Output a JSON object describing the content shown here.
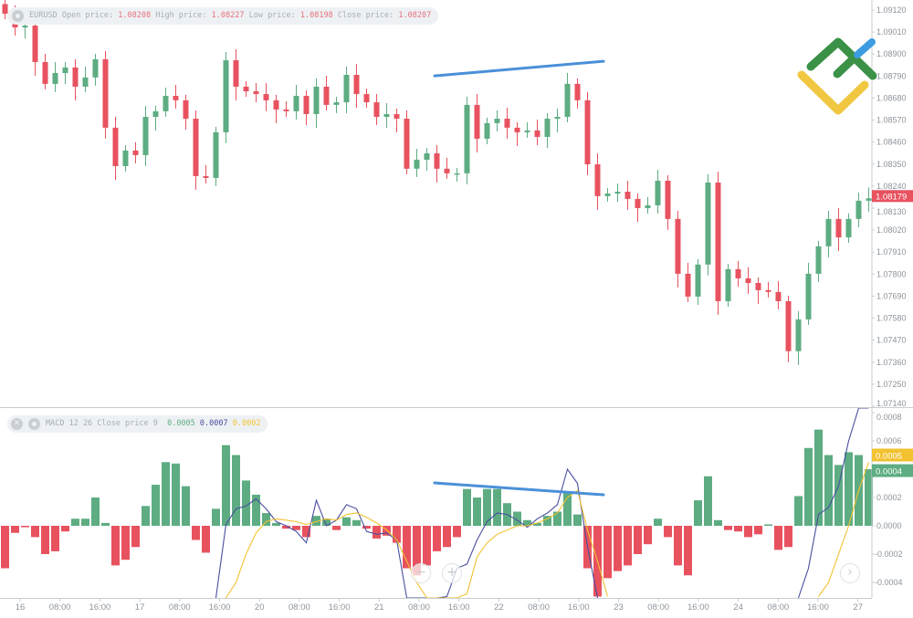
{
  "header": {
    "symbol": "EURUSD",
    "open_label": "Open price:",
    "open": "1.08208",
    "high_label": "High price:",
    "high": "1.08227",
    "low_label": "Low price:",
    "low": "1.08198",
    "close_label": "Close price:",
    "close": "1.08207",
    "icon": "gear-icon"
  },
  "macd_header": {
    "label": "MACD 12 26 Close price 9",
    "hist": "0.0005",
    "macd": "0.0007",
    "signal": "0.0002",
    "icons": [
      "close-icon",
      "gear-icon"
    ]
  },
  "colors": {
    "up": "#5dac82",
    "down": "#e8525f",
    "macd": "#4a4f9e",
    "signal": "#f2c230",
    "trendline": "#4a90d9",
    "axis": "#c8cdd2"
  },
  "chart_data": [
    {
      "type": "candlestick",
      "symbol": "EURUSD",
      "ylim": [
        1.0714,
        1.0912
      ],
      "y_ticks": [
        "1.09120",
        "1.09010",
        "1.08900",
        "1.08790",
        "1.08680",
        "1.08570",
        "1.08460",
        "1.08350",
        "1.08240",
        "1.08130",
        "1.08020",
        "1.07910",
        "1.07800",
        "1.07690",
        "1.07580",
        "1.07470",
        "1.07360",
        "1.07250",
        "1.07140"
      ],
      "current_price": "1.08179",
      "first_open": 1.0915,
      "close": [
        1.09102,
        1.09033,
        1.09042,
        1.0886,
        1.08751,
        1.08805,
        1.08833,
        1.08737,
        1.08783,
        1.08874,
        1.08532,
        1.0834,
        1.08418,
        1.08395,
        1.08586,
        1.08614,
        1.08691,
        1.08669,
        1.08577,
        1.0829,
        1.08281,
        1.08509,
        1.08869,
        1.08737,
        1.08714,
        1.087,
        1.08669,
        1.08623,
        1.08614,
        1.08691,
        1.086,
        1.08737,
        1.08646,
        1.08659,
        1.08796,
        1.087,
        1.08659,
        1.08586,
        1.086,
        1.08577,
        1.08327,
        1.08372,
        1.08404,
        1.08327,
        1.08304,
        1.08304,
        1.08646,
        1.08477,
        1.08555,
        1.08577,
        1.08532,
        1.08509,
        1.08518,
        1.08486,
        1.08577,
        1.08586,
        1.08751,
        1.08669,
        1.08349,
        1.0819,
        1.08203,
        1.08212,
        1.08176,
        1.0813,
        1.08144,
        1.08267,
        1.08076,
        1.07802,
        1.07688,
        1.07848,
        1.08258,
        1.07665,
        1.07825,
        1.07779,
        1.07756,
        1.0772,
        1.07711,
        1.07665,
        1.07415,
        1.07574,
        1.07802,
        1.07939,
        1.08076,
        1.07984,
        1.08076,
        1.08167,
        1.08179
      ],
      "trendline": [
        1.08791,
        1.08864
      ]
    },
    {
      "type": "macd",
      "ylim": [
        -0.00045,
        0.0008
      ],
      "y_ticks": [
        "0.0008",
        "0.0006",
        "0.0002",
        "0.0000",
        "-0.0002",
        "-0.0004"
      ],
      "badges": {
        "signal": "0.0005",
        "histogram": "0.0004"
      },
      "histogram": [
        -0.0003,
        -5e-05,
        -1e-05,
        -8e-05,
        -0.0002,
        -0.00018,
        -4e-05,
        5e-05,
        5e-05,
        0.0002,
        2e-05,
        -0.00028,
        -0.00024,
        -0.00015,
        0.00014,
        0.00029,
        0.00045,
        0.00044,
        0.00028,
        -0.0001,
        -0.00019,
        0.00012,
        0.00057,
        0.0005,
        0.00032,
        0.00022,
        9e-05,
        2e-05,
        -2e-05,
        -3e-05,
        -8e-05,
        7e-05,
        5e-05,
        -3e-05,
        6e-05,
        4e-05,
        -2e-05,
        -9e-05,
        -7e-05,
        -0.00012,
        -0.0003,
        -0.00035,
        -0.00028,
        -0.00018,
        -0.00015,
        -8e-05,
        0.00026,
        0.0002,
        0.00026,
        0.00026,
        0.00016,
        0.0001,
        4e-05,
        2e-05,
        7e-05,
        0.0001,
        0.00023,
        8e-05,
        -0.0003,
        -0.0005,
        -0.00037,
        -0.00032,
        -0.00028,
        -0.0002,
        -0.00013,
        5e-05,
        -8e-05,
        -0.00028,
        -0.00035,
        0.00018,
        0.00035,
        4e-05,
        -3e-05,
        -4e-05,
        -8e-05,
        -6e-05,
        1e-05,
        -0.00017,
        -0.00015,
        0.00021,
        0.00055,
        0.00068,
        0.0005,
        0.00043,
        0.00052,
        0.0005,
        0.0004
      ],
      "macd": [
        null,
        null,
        null,
        null,
        null,
        null,
        null,
        null,
        null,
        null,
        null,
        null,
        null,
        null,
        null,
        null,
        null,
        null,
        null,
        null,
        null,
        -0.0008,
        1e-05,
        0.00012,
        0.00014,
        0.00019,
        0.00012,
        3e-05,
        0,
        -4e-05,
        -0.00012,
        0.00018,
        0,
        4e-05,
        0.00015,
        0.00012,
        -4e-05,
        -6e-05,
        -5e-05,
        -0.0001,
        -0.0006,
        -0.0009,
        -0.001,
        -0.001,
        -0.0005,
        -0.0003,
        -0.00027,
        -0.0001,
        3e-05,
        9e-05,
        8e-05,
        4e-05,
        -1e-05,
        5e-05,
        9e-05,
        0.00015,
        0.0004,
        0.0003,
        -0.00015,
        -0.0008,
        null,
        null,
        null,
        null,
        null,
        null,
        null,
        null,
        null,
        null,
        null,
        null,
        null,
        null,
        null,
        null,
        null,
        null,
        null,
        -0.0009,
        -0.0003,
        8e-05,
        0.00013,
        0.00028,
        0.0006,
        0.00085,
        0.00095
      ],
      "signal": [
        null,
        null,
        null,
        null,
        null,
        null,
        null,
        null,
        null,
        null,
        null,
        null,
        null,
        null,
        null,
        null,
        null,
        null,
        null,
        null,
        null,
        null,
        -0.0006,
        -0.0004,
        -0.0002,
        -5e-05,
        3e-05,
        5e-05,
        4e-05,
        3e-05,
        1e-05,
        3e-05,
        5e-05,
        4e-05,
        8e-05,
        9e-05,
        6e-05,
        2e-05,
        -3e-05,
        -0.0001,
        -0.00025,
        -0.0004,
        -0.00055,
        -0.0006,
        -0.0006,
        -0.00055,
        -0.00048,
        -0.00022,
        -0.00012,
        -6e-05,
        -3e-05,
        0,
        0,
        2e-05,
        5e-05,
        9e-05,
        0.0002,
        0.00025,
        -3e-05,
        -0.00025,
        -0.0005,
        null,
        null,
        null,
        null,
        null,
        null,
        null,
        null,
        null,
        null,
        null,
        null,
        null,
        null,
        null,
        null,
        null,
        null,
        null,
        null,
        -0.0005,
        -0.0004,
        -0.0002,
        0,
        0.00025,
        0.00045
      ],
      "trendline": [
        0.000303,
        0.000219
      ]
    }
  ],
  "x_ticks": [
    "16",
    "08:00",
    "16:00",
    "17",
    "08:00",
    "16:00",
    "20",
    "08:00",
    "16:00",
    "21",
    "08:00",
    "16:00",
    "22",
    "08:00",
    "16:00",
    "23",
    "08:00",
    "16:00",
    "24",
    "08:00",
    "16:00",
    "27"
  ],
  "controls": {
    "zoom_out": "−",
    "zoom_in": "+",
    "scroll_right": "›"
  },
  "logo": {
    "name": "broker-logo"
  }
}
